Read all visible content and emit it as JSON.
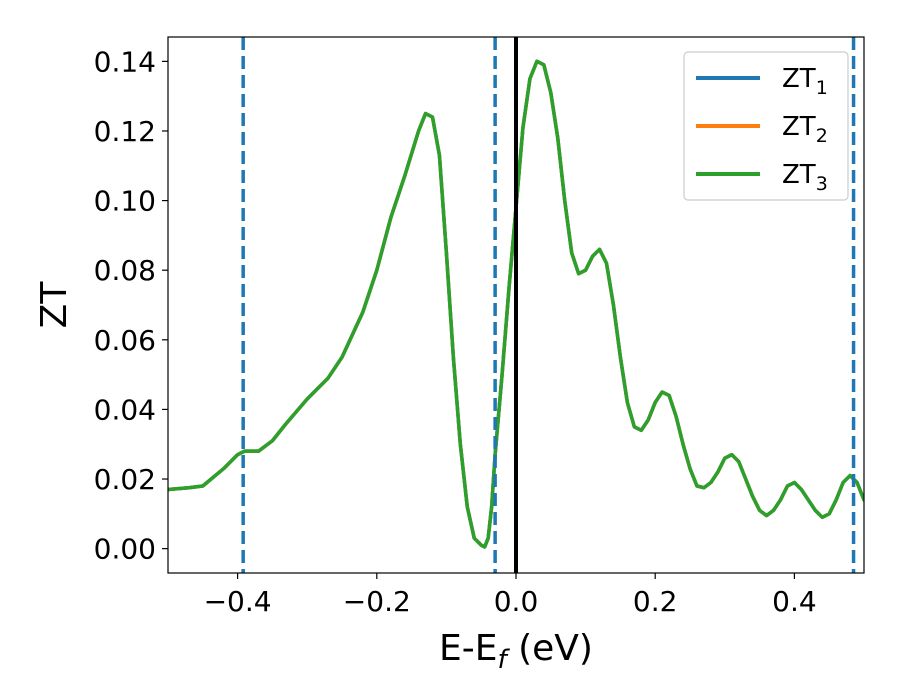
{
  "chart_data": {
    "type": "line",
    "title": "",
    "xlabel": "E-E",
    "xlabel_sub": "f",
    "xlabel_unit": " (eV)",
    "ylabel": "ZT",
    "xlim": [
      -0.5,
      0.5
    ],
    "ylim": [
      -0.007,
      0.147
    ],
    "grid": false,
    "legend_position": "top-right",
    "x_ticks": [
      {
        "value": -0.4,
        "label": "−0.4"
      },
      {
        "value": -0.2,
        "label": "−0.2"
      },
      {
        "value": 0.0,
        "label": "0.0"
      },
      {
        "value": 0.2,
        "label": "0.2"
      },
      {
        "value": 0.4,
        "label": "0.4"
      }
    ],
    "y_ticks": [
      {
        "value": 0.0,
        "label": "0.00"
      },
      {
        "value": 0.02,
        "label": "0.02"
      },
      {
        "value": 0.04,
        "label": "0.04"
      },
      {
        "value": 0.06,
        "label": "0.06"
      },
      {
        "value": 0.08,
        "label": "0.08"
      },
      {
        "value": 0.1,
        "label": "0.10"
      },
      {
        "value": 0.12,
        "label": "0.12"
      },
      {
        "value": 0.14,
        "label": "0.14"
      }
    ],
    "x": [
      -0.5,
      -0.47,
      -0.45,
      -0.42,
      -0.4,
      -0.39,
      -0.37,
      -0.35,
      -0.33,
      -0.3,
      -0.27,
      -0.25,
      -0.22,
      -0.2,
      -0.18,
      -0.16,
      -0.14,
      -0.13,
      -0.12,
      -0.11,
      -0.1,
      -0.09,
      -0.08,
      -0.07,
      -0.06,
      -0.05,
      -0.045,
      -0.04,
      -0.035,
      -0.03,
      -0.02,
      -0.01,
      0.0,
      0.01,
      0.02,
      0.03,
      0.04,
      0.045,
      0.05,
      0.06,
      0.07,
      0.08,
      0.09,
      0.1,
      0.11,
      0.12,
      0.13,
      0.14,
      0.15,
      0.16,
      0.17,
      0.18,
      0.19,
      0.2,
      0.21,
      0.22,
      0.23,
      0.24,
      0.25,
      0.26,
      0.27,
      0.28,
      0.29,
      0.3,
      0.31,
      0.32,
      0.33,
      0.34,
      0.35,
      0.36,
      0.37,
      0.38,
      0.39,
      0.4,
      0.41,
      0.42,
      0.43,
      0.44,
      0.45,
      0.46,
      0.47,
      0.48,
      0.49,
      0.5
    ],
    "series": [
      {
        "name": "ZT1",
        "color": "#1f77b4",
        "values": [
          0.017,
          0.0175,
          0.018,
          0.023,
          0.027,
          0.028,
          0.028,
          0.031,
          0.036,
          0.043,
          0.049,
          0.055,
          0.068,
          0.08,
          0.095,
          0.107,
          0.12,
          0.125,
          0.124,
          0.113,
          0.085,
          0.055,
          0.03,
          0.012,
          0.003,
          0.001,
          0.0005,
          0.003,
          0.012,
          0.027,
          0.05,
          0.075,
          0.098,
          0.121,
          0.135,
          0.14,
          0.139,
          0.135,
          0.131,
          0.118,
          0.1,
          0.085,
          0.079,
          0.08,
          0.084,
          0.086,
          0.082,
          0.07,
          0.055,
          0.042,
          0.035,
          0.034,
          0.037,
          0.042,
          0.045,
          0.044,
          0.038,
          0.03,
          0.023,
          0.018,
          0.0175,
          0.019,
          0.022,
          0.026,
          0.027,
          0.025,
          0.02,
          0.015,
          0.011,
          0.0095,
          0.011,
          0.014,
          0.018,
          0.019,
          0.017,
          0.014,
          0.011,
          0.009,
          0.01,
          0.014,
          0.019,
          0.021,
          0.019,
          0.014
        ]
      },
      {
        "name": "ZT2",
        "color": "#ff7f0e",
        "values": [
          0.017,
          0.0175,
          0.018,
          0.023,
          0.027,
          0.028,
          0.028,
          0.031,
          0.036,
          0.043,
          0.049,
          0.055,
          0.068,
          0.08,
          0.095,
          0.107,
          0.12,
          0.125,
          0.124,
          0.113,
          0.085,
          0.055,
          0.03,
          0.012,
          0.003,
          0.001,
          0.0005,
          0.003,
          0.012,
          0.027,
          0.05,
          0.075,
          0.098,
          0.121,
          0.135,
          0.14,
          0.139,
          0.135,
          0.131,
          0.118,
          0.1,
          0.085,
          0.079,
          0.08,
          0.084,
          0.086,
          0.082,
          0.07,
          0.055,
          0.042,
          0.035,
          0.034,
          0.037,
          0.042,
          0.045,
          0.044,
          0.038,
          0.03,
          0.023,
          0.018,
          0.0175,
          0.019,
          0.022,
          0.026,
          0.027,
          0.025,
          0.02,
          0.015,
          0.011,
          0.0095,
          0.011,
          0.014,
          0.018,
          0.019,
          0.017,
          0.014,
          0.011,
          0.009,
          0.01,
          0.014,
          0.019,
          0.021,
          0.019,
          0.014
        ]
      },
      {
        "name": "ZT3",
        "color": "#2ca02c",
        "values": [
          0.017,
          0.0175,
          0.018,
          0.023,
          0.027,
          0.028,
          0.028,
          0.031,
          0.036,
          0.043,
          0.049,
          0.055,
          0.068,
          0.08,
          0.095,
          0.107,
          0.12,
          0.125,
          0.124,
          0.113,
          0.085,
          0.055,
          0.03,
          0.012,
          0.003,
          0.001,
          0.0005,
          0.003,
          0.012,
          0.027,
          0.05,
          0.075,
          0.098,
          0.121,
          0.135,
          0.14,
          0.139,
          0.135,
          0.131,
          0.118,
          0.1,
          0.085,
          0.079,
          0.08,
          0.084,
          0.086,
          0.082,
          0.07,
          0.055,
          0.042,
          0.035,
          0.034,
          0.037,
          0.042,
          0.045,
          0.044,
          0.038,
          0.03,
          0.023,
          0.018,
          0.0175,
          0.019,
          0.022,
          0.026,
          0.027,
          0.025,
          0.02,
          0.015,
          0.011,
          0.0095,
          0.011,
          0.014,
          0.018,
          0.019,
          0.017,
          0.014,
          0.011,
          0.009,
          0.01,
          0.014,
          0.019,
          0.021,
          0.019,
          0.014
        ]
      }
    ],
    "legend": [
      {
        "base": "ZT",
        "sub": "1",
        "color": "#1f77b4"
      },
      {
        "base": "ZT",
        "sub": "2",
        "color": "#ff7f0e"
      },
      {
        "base": "ZT",
        "sub": "3",
        "color": "#2ca02c"
      }
    ],
    "vertical_lines": [
      {
        "x": -0.392,
        "style": "dashed",
        "color": "#1f77b4"
      },
      {
        "x": -0.03,
        "style": "dashed",
        "color": "#1f77b4"
      },
      {
        "x": 0.0,
        "style": "solid",
        "color": "#000000"
      },
      {
        "x": 0.485,
        "style": "dashed",
        "color": "#1f77b4"
      }
    ]
  }
}
